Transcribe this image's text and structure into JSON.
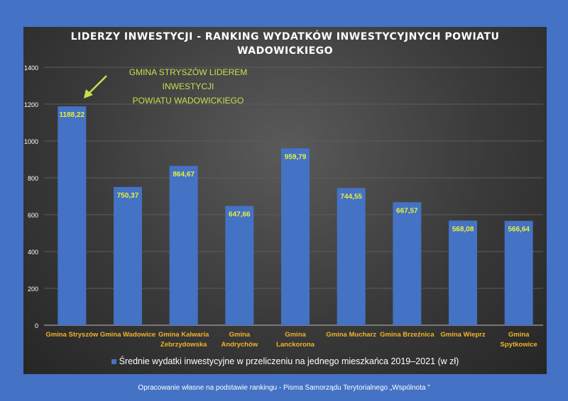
{
  "chart_data": {
    "type": "bar",
    "title": "LIDERZY INWESTYCJI - RANKING WYDATKÓW INWESTYCYJNYCH POWIATU WADOWICKIEGO",
    "categories": [
      "Gmina Stryszów",
      "Gmina Wadowice",
      "Gmina Kalwaria Zebrzydowska",
      "Gmina Andrychów",
      "Gmina Lanckorona",
      "Gmina Mucharz",
      "Gmina Brzeźnica",
      "Gmina Wieprz",
      "Gmina Spytkowice"
    ],
    "category_lines": [
      [
        "Gmina Stryszów"
      ],
      [
        "Gmina Wadowice"
      ],
      [
        "Gmina Kalwaria",
        "Zebrzydowska"
      ],
      [
        "Gmina",
        "Andrychów"
      ],
      [
        "Gmina",
        "Lanckorona"
      ],
      [
        "Gmina Mucharz"
      ],
      [
        "Gmina Brzeźnica"
      ],
      [
        "Gmina Wieprz"
      ],
      [
        "Gmina",
        "Spytkowice"
      ]
    ],
    "values": [
      1188.22,
      750.37,
      864.67,
      647.66,
      959.79,
      744.55,
      667.57,
      568.08,
      566.64
    ],
    "value_labels": [
      "1188,22",
      "750,37",
      "864,67",
      "647,66",
      "959,79",
      "744,55",
      "667,57",
      "568,08",
      "566,64"
    ],
    "series_name": "Średnie wydatki inwestycyjne w przeliczeniu na jednego mieszkańca  2019–2021 (w zł)",
    "ylim": [
      0,
      1400
    ],
    "yticks": [
      0,
      200,
      400,
      600,
      800,
      1000,
      1200,
      1400
    ],
    "grid": true,
    "legend_position": "bottom",
    "annotation": [
      "GMINA STRYSZÓW  LIDEREM INWESTYCJI",
      "POWIATU WADOWICKIEGO"
    ],
    "colors": {
      "bar": "#4472c4",
      "label": "#e8f03c",
      "tick": "#f0b429",
      "annotation": "#c9e04a"
    }
  },
  "title_lines": [
    "LIDERZY INWESTYCJI - RANKING WYDATKÓW INWESTYCYJNYCH POWIATU",
    "WADOWICKIEGO"
  ],
  "footer": "Opracowanie własne na podstawie rankingu - Pisma Samorządu Terytorialnego „Wspólnota ”"
}
